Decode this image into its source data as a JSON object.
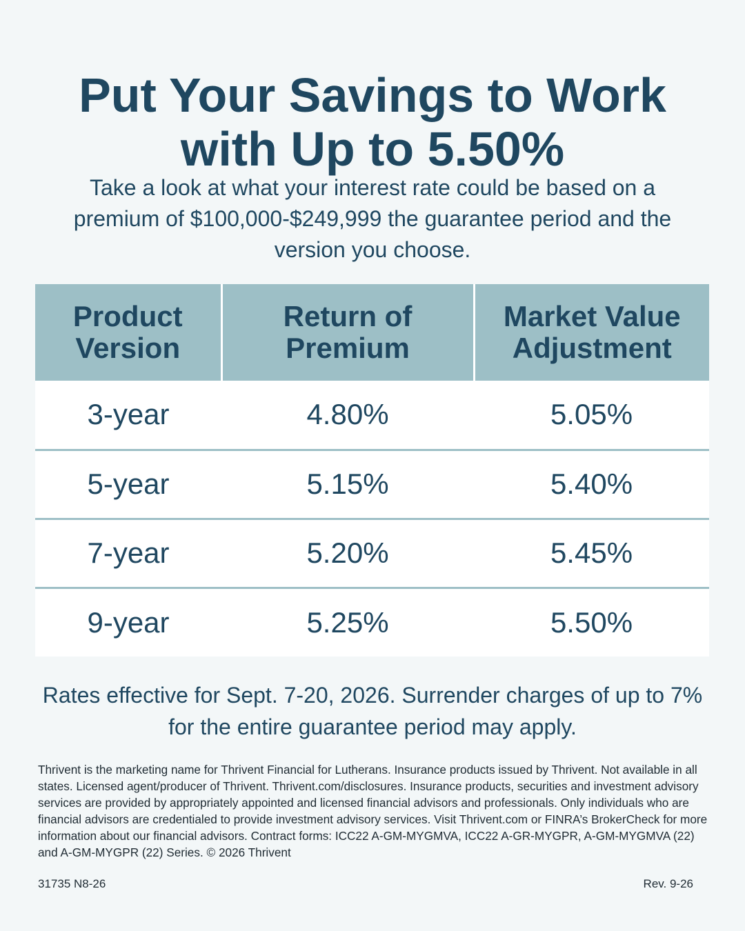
{
  "headline": {
    "line1": "Put Your Savings to Work",
    "line2": "with Up to 5.50%"
  },
  "intro": "Take a look at what your interest rate could be based on a premium of $100,000-$249,999 the guarantee period and the version you choose.",
  "table": {
    "headers": [
      {
        "line1": "Product",
        "line2": "Version"
      },
      {
        "line1": "Return of",
        "line2": "Premium"
      },
      {
        "line1": "Market Value",
        "line2": "Adjustment"
      }
    ],
    "rows": [
      {
        "version": "3-year",
        "return_of_premium": "4.80%",
        "market_value_adjustment": "5.05%"
      },
      {
        "version": "5-year",
        "return_of_premium": "5.15%",
        "market_value_adjustment": "5.40%"
      },
      {
        "version": "7-year",
        "return_of_premium": "5.20%",
        "market_value_adjustment": "5.45%"
      },
      {
        "version": "9-year",
        "return_of_premium": "5.25%",
        "market_value_adjustment": "5.50%"
      }
    ]
  },
  "rates_note": "Rates effective for Sept. 7-20, 2026. Surrender charges of up to 7% for the entire guarantee period may apply.",
  "disclaimer": "Thrivent is the marketing name for Thrivent Financial for Lutherans. Insurance products issued by Thrivent. Not available in all states. Licensed agent/producer of Thrivent. Thrivent.com/disclosures. Insurance products, securities and investment advisory services are provided by appropriately appointed and licensed financial advisors and professionals. Only individuals who are financial advisors are credentialed to provide investment advisory services. Visit Thrivent.com or FINRA’s BrokerCheck for more information about our financial advisors. Contract forms: ICC22 A-GM-MYGMVA, ICC22 A-GR-MYGPR, A-GM-MYGMVA (22) and A-GM-MYGPR (22) Series. © 2026 Thrivent",
  "footer": {
    "code": "31735 N8-26",
    "revision": "Rev. 9-26"
  },
  "colors": {
    "background": "#f3f7f8",
    "heading_text": "#1f4760",
    "table_header": "#9dbfc6",
    "table_row": "#ffffff"
  }
}
